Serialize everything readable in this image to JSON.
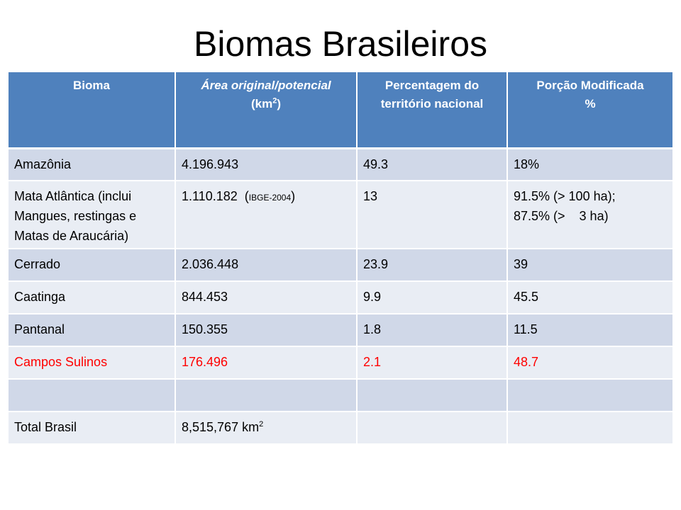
{
  "title": "Biomas Brasileiros",
  "headers": {
    "bioma": "Bioma",
    "area_main": "Área original/potencial",
    "area_unit_open": "(km",
    "area_unit_sup": "2",
    "area_unit_close": ")",
    "percent_line1": "Percentagem do",
    "percent_line2": "território nacional",
    "modificada_line1": "Porção Modificada",
    "modificada_line2": "%"
  },
  "rows": {
    "amazonia": {
      "bioma": "Amazônia",
      "area": "4.196.943",
      "percent": "49.3",
      "modificada": "18%"
    },
    "mata": {
      "bioma_line1": "Mata Atlântica (inclui",
      "bioma_line2": "Mangues, restingas e",
      "bioma_line3": "Matas de Araucária)",
      "area_value": "1.110.182",
      "area_source_open": "(",
      "area_source": "IBGE-2004",
      "area_source_close": ")",
      "percent": "13",
      "modificada_line1": "91.5% (> 100 ha);",
      "modificada_line2": "87.5% (>    3 ha)"
    },
    "cerrado": {
      "bioma": "Cerrado",
      "area": "2.036.448",
      "percent": "23.9",
      "modificada": "39"
    },
    "caatinga": {
      "bioma": "Caatinga",
      "area": "844.453",
      "percent": "9.9",
      "modificada": "45.5"
    },
    "pantanal": {
      "bioma": "Pantanal",
      "area": "150.355",
      "percent": "1.8",
      "modificada": "11.5"
    },
    "campos": {
      "bioma": "Campos Sulinos",
      "area": "176.496",
      "percent": "2.1",
      "modificada": "48.7"
    },
    "total": {
      "bioma": "Total Brasil",
      "area_value": "8,515,767 km",
      "area_sup": "2"
    }
  },
  "colors": {
    "header_bg": "#4f81bd",
    "row_dark": "#d0d8e8",
    "row_light": "#e9edf4",
    "highlight_text": "#ff0000"
  }
}
